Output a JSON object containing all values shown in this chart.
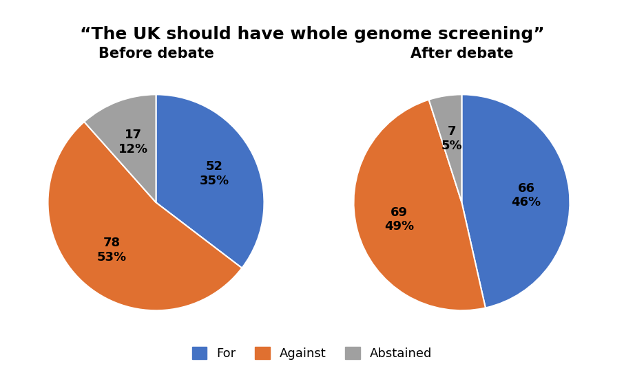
{
  "title": "“The UK should have whole genome screening”",
  "title_fontsize": 18,
  "subtitle_left": "Before debate",
  "subtitle_right": "After debate",
  "subtitle_fontsize": 15,
  "before": {
    "values": [
      52,
      78,
      17
    ],
    "percentages": [
      "35%",
      "53%",
      "12%"
    ],
    "counts": [
      "52",
      "78",
      "17"
    ],
    "colors": [
      "#4472C4",
      "#E07030",
      "#A0A0A0"
    ]
  },
  "after": {
    "values": [
      66,
      69,
      7
    ],
    "percentages": [
      "46%",
      "49%",
      "5%"
    ],
    "counts": [
      "66",
      "69",
      "7"
    ],
    "colors": [
      "#4472C4",
      "#E07030",
      "#A0A0A0"
    ]
  },
  "legend_labels": [
    "For",
    "Against",
    "Abstained"
  ],
  "legend_colors": [
    "#4472C4",
    "#E07030",
    "#A0A0A0"
  ],
  "background_color": "#FFFFFF",
  "label_fontsize": 13
}
